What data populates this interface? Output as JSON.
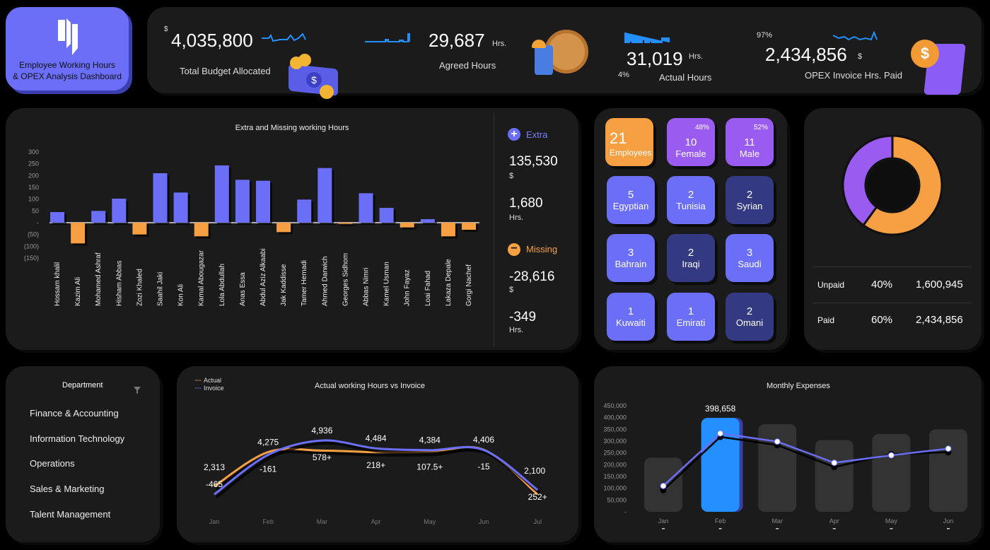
{
  "logo": {
    "title_line1": "Employee Working Hours",
    "title_line2": "& OPEX Analysis Dashboard"
  },
  "kpis": {
    "budget": {
      "currency": "$",
      "value": "4,035,800",
      "label": "Total Budget Allocated"
    },
    "agreed": {
      "value": "29,687",
      "unit": "Hrs.",
      "label": "Agreed Hours"
    },
    "actual": {
      "value": "31,019",
      "unit": "Hrs.",
      "pct": "4%",
      "label": "Actual Hours"
    },
    "opex": {
      "pct": "97%",
      "value": "2,434,856",
      "currency": "$",
      "label": "OPEX Invoice Hrs. Paid"
    }
  },
  "colors": {
    "accent": "#6b6ff8",
    "orange": "#f6a043",
    "purple": "#9a5cf0",
    "navy": "#343a82",
    "blue": "#2490ff",
    "panel": "#1b1b1b"
  },
  "extra_missing": {
    "extra": {
      "label": "Extra",
      "amount": "135,530",
      "currency": "$",
      "hours": "1,680",
      "hours_unit": "Hrs."
    },
    "missing": {
      "label": "Missing",
      "amount": "-28,616",
      "currency": "$",
      "hours": "-349",
      "hours_unit": "Hrs."
    }
  },
  "employees": {
    "total": {
      "value": "21",
      "label": "Employees"
    },
    "female": {
      "value": "10",
      "label": "Female",
      "pct": "48%"
    },
    "male": {
      "value": "11",
      "label": "Male",
      "pct": "52%"
    },
    "nationalities": [
      {
        "value": "5",
        "label": "Egyptian",
        "tone": "c1"
      },
      {
        "value": "2",
        "label": "Tunisia",
        "tone": "c1"
      },
      {
        "value": "2",
        "label": "Syrian",
        "tone": "c2"
      },
      {
        "value": "3",
        "label": "Bahrain",
        "tone": "c1"
      },
      {
        "value": "2",
        "label": "Iraqi",
        "tone": "c2"
      },
      {
        "value": "3",
        "label": "Saudi",
        "tone": "c1"
      },
      {
        "value": "1",
        "label": "Kuwaiti",
        "tone": "c1"
      },
      {
        "value": "1",
        "label": "Emirati",
        "tone": "c1"
      },
      {
        "value": "2",
        "label": "Omani",
        "tone": "c2"
      }
    ]
  },
  "payment": {
    "rows": [
      {
        "label": "Unpaid",
        "pct": "40%",
        "value": "1,600,945"
      },
      {
        "label": "Paid",
        "pct": "60%",
        "value": "2,434,856"
      }
    ]
  },
  "department": {
    "title": "Department",
    "items": [
      "Finance & Accounting",
      "Information Technology",
      "Operations",
      "Sales & Marketing",
      "Talent Management"
    ]
  },
  "chart_data": [
    {
      "type": "bar",
      "title": "Extra and Missing working Hours",
      "ylim": [
        -150,
        300
      ],
      "yticks": [
        "300",
        "250",
        "200",
        "150",
        "100",
        "50",
        "-",
        "(50)",
        "(100)",
        "(150)"
      ],
      "categories": [
        "Hossam khalil",
        "Kazim Ali",
        "Mohamed Ashraf",
        "Hisham Abbas",
        "Zozi Khaled",
        "Saahil Jaki",
        "Kon  Ali",
        "Kamal Abougazar",
        "Lola Abdullah",
        "Anas Essa",
        "Abdul Aziz Alkaabi",
        "Jak Kaddisse",
        "Tamer Hemadi",
        "Ahmed Darwich",
        "Georges Sidhom",
        "Abbas Nimri",
        "Kamel Usman",
        "John Fayaz",
        "Loai Fahad",
        "Lakaza Depale",
        "Gorgi Nachef"
      ],
      "values": [
        45,
        -88,
        50,
        102,
        -50,
        210,
        128,
        -58,
        243,
        182,
        178,
        -40,
        98,
        232,
        -5,
        125,
        63,
        -20,
        15,
        -58,
        -30
      ]
    },
    {
      "type": "line",
      "title": "Actual working Hours vs Invoice",
      "categories": [
        "Jan",
        "Feb",
        "Mar",
        "Apr",
        "May",
        "Jun",
        "Jul"
      ],
      "series": [
        {
          "name": "Actual",
          "values": [
            2313,
            4275,
            4358,
            4266,
            4277,
            4406,
            1848
          ]
        },
        {
          "name": "Invoice",
          "values": [
            1848,
            4114,
            4936,
            4484,
            4384,
            4391,
            2100
          ]
        }
      ],
      "value_labels": [
        "2,313",
        "4,275",
        "4,936",
        "4,484",
        "4,384",
        "4,406",
        "2,100"
      ],
      "difference_labels": [
        "-465",
        "-161",
        "578+",
        "218+",
        "107.5+",
        "-15",
        "252+"
      ]
    },
    {
      "type": "bar",
      "title": "Monthly Expenses",
      "ylim": [
        0,
        450000
      ],
      "yticks": [
        "450,000",
        "400,000",
        "350,000",
        "300,000",
        "250,000",
        "200,000",
        "150,000",
        "100,000",
        "50,000",
        "-"
      ],
      "categories": [
        "Jan",
        "Feb",
        "Mar",
        "Apr",
        "May",
        "Jun"
      ],
      "values": [
        230000,
        398658,
        372000,
        305000,
        330000,
        350000
      ],
      "highlight_label": "398,658",
      "lines": [
        [
          110000,
          333000,
          298000,
          208000,
          240000,
          268000
        ],
        [
          92000,
          318000,
          283000,
          190000,
          245000,
          253000
        ]
      ]
    }
  ]
}
